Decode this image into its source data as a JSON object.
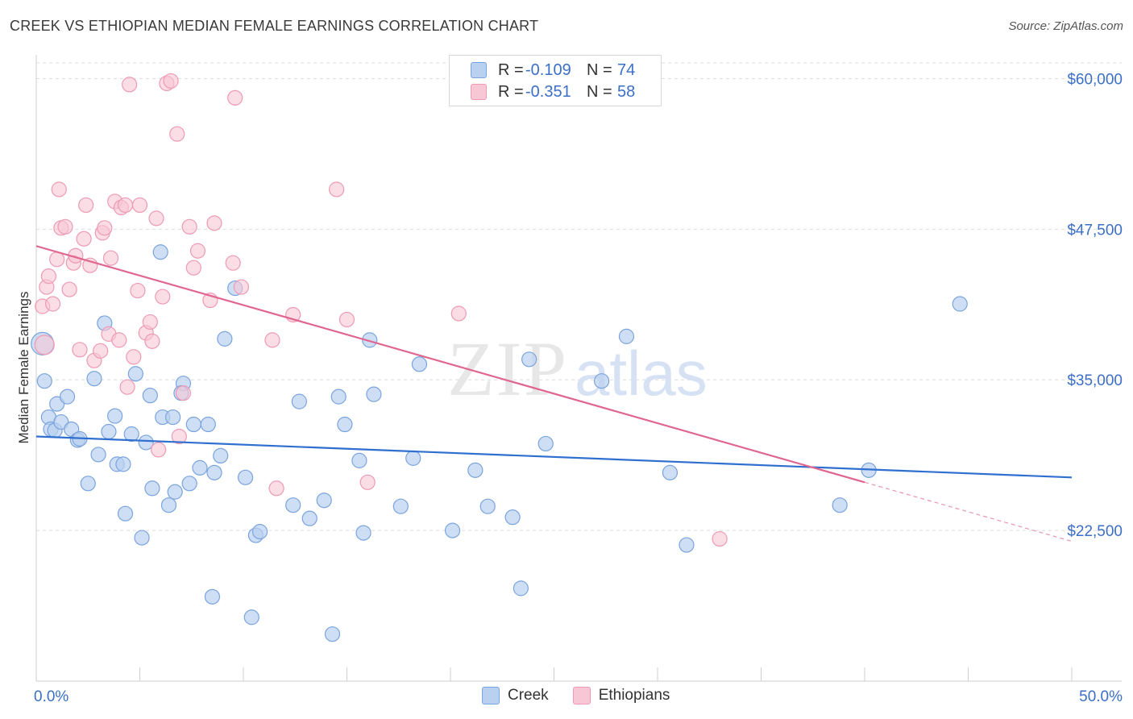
{
  "header": {
    "title": "CREEK VS ETHIOPIAN MEDIAN FEMALE EARNINGS CORRELATION CHART",
    "source": "Source: ZipAtlas.com"
  },
  "legend_top": {
    "rows": [
      {
        "r_label": "R =",
        "r_value": "-0.109",
        "n_label": "N =",
        "n_value": "74"
      },
      {
        "r_label": "R =",
        "r_value": "-0.351",
        "n_label": "N =",
        "n_value": "58"
      }
    ]
  },
  "legend_bottom": {
    "creek": "Creek",
    "ethiopians": "Ethiopians"
  },
  "colors": {
    "creek_fill": "#b9d0f0",
    "creek_stroke": "#7aa4de",
    "creek_line": "#2f6fcf",
    "eth_fill": "#f8c7d6",
    "eth_stroke": "#ee9ab4",
    "eth_line": "#e06690",
    "tick_label": "#3b6fc8",
    "grid": "#dcdcdc"
  },
  "chart_data": {
    "type": "scatter",
    "title": "CREEK VS ETHIOPIAN MEDIAN FEMALE EARNINGS CORRELATION CHART",
    "xlabel": "",
    "ylabel": "Median Female Earnings",
    "xlim": [
      0,
      50
    ],
    "ylim": [
      10000,
      61500
    ],
    "x_tick_labels": [
      "0.0%",
      "50.0%"
    ],
    "y_ticks": [
      22500,
      35000,
      47500,
      60000
    ],
    "y_tick_labels": [
      "$22,500",
      "$35,000",
      "$47,500",
      "$60,000"
    ],
    "watermark": {
      "zip": "ZIP",
      "atlas": "atlas"
    },
    "series": [
      {
        "name": "Creek",
        "R": -0.109,
        "N": 74,
        "trend": {
          "x0": 0,
          "y0": 30300,
          "x1": 50,
          "y1": 26900
        },
        "points": [
          [
            0.3,
            38000
          ],
          [
            0.4,
            34900
          ],
          [
            0.6,
            31900
          ],
          [
            0.7,
            30900
          ],
          [
            0.9,
            30800
          ],
          [
            1.0,
            33000
          ],
          [
            1.2,
            31500
          ],
          [
            1.5,
            33600
          ],
          [
            1.7,
            30900
          ],
          [
            2.0,
            30000
          ],
          [
            2.1,
            30100
          ],
          [
            2.5,
            26400
          ],
          [
            2.8,
            35100
          ],
          [
            3.0,
            28800
          ],
          [
            3.3,
            39700
          ],
          [
            3.5,
            30700
          ],
          [
            3.8,
            32000
          ],
          [
            3.9,
            28000
          ],
          [
            4.2,
            28000
          ],
          [
            4.3,
            23900
          ],
          [
            4.6,
            30500
          ],
          [
            4.8,
            35500
          ],
          [
            5.1,
            21900
          ],
          [
            5.3,
            29800
          ],
          [
            5.5,
            33700
          ],
          [
            5.6,
            26000
          ],
          [
            6.0,
            45600
          ],
          [
            6.1,
            31900
          ],
          [
            6.4,
            24600
          ],
          [
            6.6,
            31900
          ],
          [
            6.7,
            25700
          ],
          [
            7.1,
            34700
          ],
          [
            7.0,
            33900
          ],
          [
            7.4,
            26400
          ],
          [
            7.6,
            31300
          ],
          [
            7.9,
            27700
          ],
          [
            8.3,
            31300
          ],
          [
            8.5,
            17000
          ],
          [
            8.6,
            27300
          ],
          [
            8.9,
            28700
          ],
          [
            9.1,
            38400
          ],
          [
            9.6,
            42600
          ],
          [
            10.1,
            26900
          ],
          [
            10.4,
            15300
          ],
          [
            10.6,
            22100
          ],
          [
            10.8,
            22400
          ],
          [
            12.4,
            24600
          ],
          [
            12.7,
            33200
          ],
          [
            13.2,
            23500
          ],
          [
            13.9,
            25000
          ],
          [
            14.3,
            13900
          ],
          [
            14.6,
            33600
          ],
          [
            14.9,
            31300
          ],
          [
            15.6,
            28300
          ],
          [
            15.8,
            22300
          ],
          [
            16.1,
            38300
          ],
          [
            16.3,
            33800
          ],
          [
            17.6,
            24500
          ],
          [
            18.2,
            28500
          ],
          [
            18.5,
            36300
          ],
          [
            20.1,
            22500
          ],
          [
            21.2,
            27500
          ],
          [
            21.8,
            24500
          ],
          [
            23.0,
            23600
          ],
          [
            23.4,
            17700
          ],
          [
            23.8,
            36700
          ],
          [
            24.6,
            29700
          ],
          [
            27.3,
            34900
          ],
          [
            28.5,
            38600
          ],
          [
            30.6,
            27300
          ],
          [
            31.4,
            21300
          ],
          [
            38.8,
            24600
          ],
          [
            40.2,
            27500
          ],
          [
            44.6,
            41300
          ]
        ]
      },
      {
        "name": "Ethiopians",
        "R": -0.351,
        "N": 58,
        "trend": {
          "x0": 0,
          "y0": 46100,
          "x1": 40,
          "y1": 26500,
          "dash_x1": 50,
          "dash_y1": 21600
        },
        "points": [
          [
            0.3,
            41100
          ],
          [
            0.5,
            42700
          ],
          [
            0.6,
            43600
          ],
          [
            0.8,
            41300
          ],
          [
            1.0,
            45000
          ],
          [
            1.1,
            50800
          ],
          [
            1.2,
            47600
          ],
          [
            1.4,
            47700
          ],
          [
            1.6,
            42500
          ],
          [
            1.8,
            44700
          ],
          [
            1.9,
            45300
          ],
          [
            2.1,
            37500
          ],
          [
            2.3,
            46700
          ],
          [
            2.4,
            49500
          ],
          [
            2.6,
            44500
          ],
          [
            2.8,
            36600
          ],
          [
            3.1,
            37400
          ],
          [
            3.2,
            47200
          ],
          [
            3.3,
            47600
          ],
          [
            3.5,
            38800
          ],
          [
            3.6,
            45100
          ],
          [
            3.8,
            49800
          ],
          [
            4.0,
            38300
          ],
          [
            4.1,
            49300
          ],
          [
            4.3,
            49500
          ],
          [
            4.4,
            34400
          ],
          [
            4.5,
            59500
          ],
          [
            4.7,
            36900
          ],
          [
            4.9,
            42400
          ],
          [
            5.0,
            49500
          ],
          [
            5.3,
            38900
          ],
          [
            5.5,
            39800
          ],
          [
            5.6,
            38200
          ],
          [
            5.8,
            48400
          ],
          [
            5.9,
            29200
          ],
          [
            6.1,
            41900
          ],
          [
            6.3,
            59600
          ],
          [
            6.5,
            59800
          ],
          [
            6.8,
            55400
          ],
          [
            6.9,
            30300
          ],
          [
            7.1,
            33900
          ],
          [
            7.4,
            47700
          ],
          [
            7.6,
            44300
          ],
          [
            7.8,
            45700
          ],
          [
            8.4,
            41600
          ],
          [
            8.6,
            48000
          ],
          [
            9.5,
            44700
          ],
          [
            9.6,
            58400
          ],
          [
            9.9,
            42700
          ],
          [
            11.4,
            38300
          ],
          [
            11.6,
            26000
          ],
          [
            12.4,
            40400
          ],
          [
            14.5,
            50800
          ],
          [
            15.0,
            40000
          ],
          [
            16.0,
            26500
          ],
          [
            20.4,
            40500
          ],
          [
            33.0,
            21800
          ],
          [
            0.4,
            37900
          ]
        ]
      }
    ]
  }
}
